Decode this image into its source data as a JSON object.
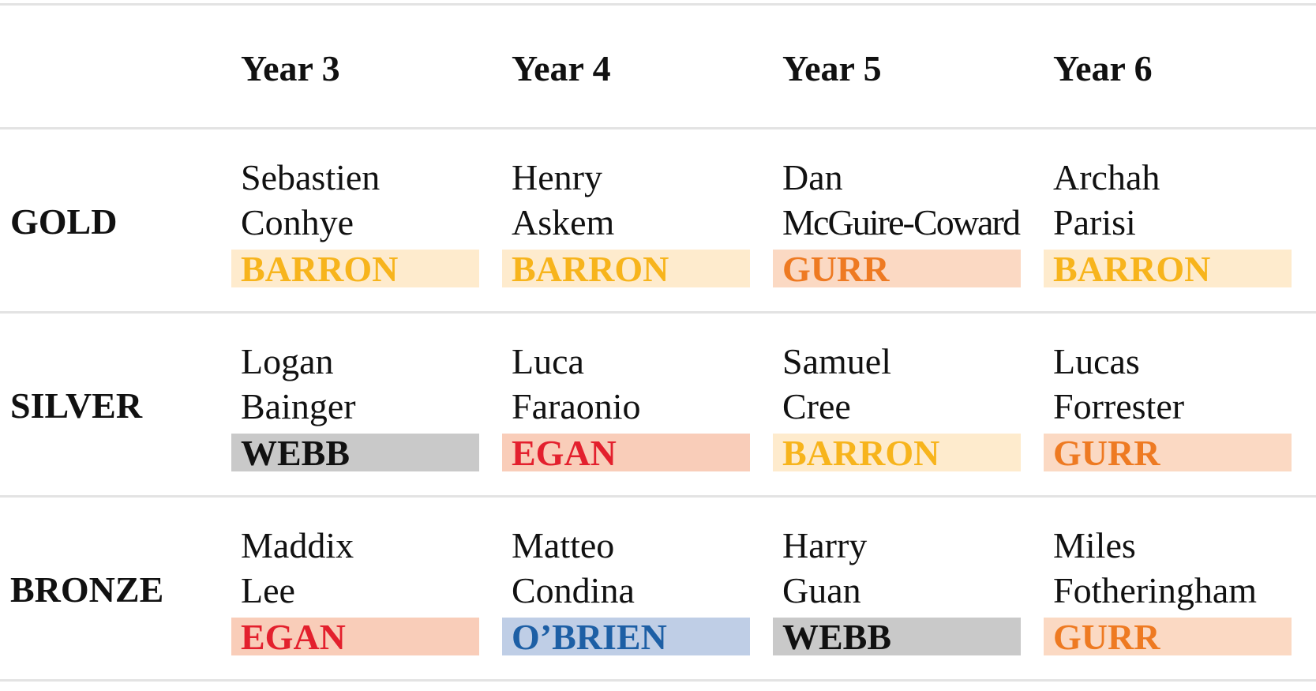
{
  "table": {
    "header": [
      "Year 3",
      "Year 4",
      "Year 5",
      "Year 6"
    ],
    "rows": [
      {
        "label": "GOLD",
        "cells": [
          {
            "first": "Sebastien",
            "last": "Conhye",
            "house": "BARRON",
            "color": "#f7b41c",
            "background": "#feebcd"
          },
          {
            "first": "Henry",
            "last": "Askem",
            "house": "BARRON",
            "color": "#f7b41c",
            "background": "#feebcd"
          },
          {
            "first": "Dan",
            "last": "McGuire-Coward",
            "house": "GURR",
            "color": "#ee7a22",
            "background": "#fbd9c3"
          },
          {
            "first": "Archah",
            "last": "Parisi",
            "house": "BARRON",
            "color": "#f7b41c",
            "background": "#feebcd"
          }
        ]
      },
      {
        "label": "SILVER",
        "cells": [
          {
            "first": "Logan",
            "last": "Bainger",
            "house": "WEBB",
            "color": "#111111",
            "background": "#c9c9c9"
          },
          {
            "first": "Luca",
            "last": "Faraonio",
            "house": "EGAN",
            "color": "#e3202d",
            "background": "#f9cdb9"
          },
          {
            "first": "Samuel",
            "last": "Cree",
            "house": "BARRON",
            "color": "#f7b41c",
            "background": "#feebcd"
          },
          {
            "first": "Lucas",
            "last": "Forrester",
            "house": "GURR",
            "color": "#ee7a22",
            "background": "#fbd9c3"
          }
        ]
      },
      {
        "label": "BRONZE",
        "cells": [
          {
            "first": "Maddix",
            "last": "Lee",
            "house": "EGAN",
            "color": "#e3202d",
            "background": "#f9cdb9"
          },
          {
            "first": "Matteo",
            "last": "Condina",
            "house": "O’BRIEN",
            "color": "#1d5fa5",
            "background": "#bfcee6"
          },
          {
            "first": "Harry",
            "last": "Guan",
            "house": "WEBB",
            "color": "#111111",
            "background": "#c9c9c9"
          },
          {
            "first": "Miles",
            "last": "Fotheringham",
            "house": "GURR",
            "color": "#ee7a22",
            "background": "#fbd9c3"
          }
        ]
      }
    ]
  }
}
